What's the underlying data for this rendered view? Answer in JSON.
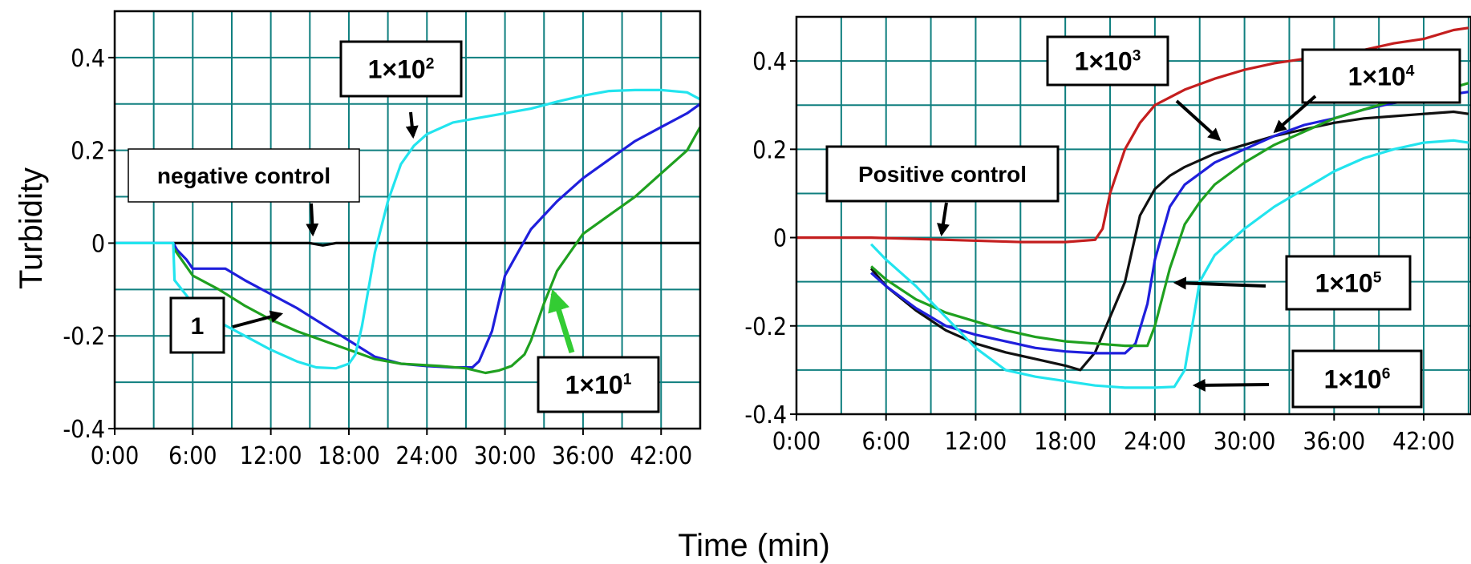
{
  "figure": {
    "ylabel": "Turbidity",
    "xlabel": "Time (min)"
  },
  "chart_data": [
    {
      "type": "line",
      "panel": "left",
      "xlabel": "Time (min)",
      "ylabel": "Turbidity",
      "x_ticks": [
        "0:00",
        "6:00",
        "12:00",
        "18:00",
        "24:00",
        "30:00",
        "36:00",
        "42:00"
      ],
      "y_ticks": [
        "0.4",
        "0.2",
        "0",
        "-0.2",
        "-0.4"
      ],
      "xlim": [
        0,
        45
      ],
      "ylim": [
        -0.4,
        0.5
      ],
      "grid": true,
      "series": [
        {
          "name": "negative control",
          "color": "#000000",
          "points": [
            [
              4.5,
              0
            ],
            [
              10,
              0
            ],
            [
              15,
              0
            ],
            [
              16,
              -0.005
            ],
            [
              17,
              0
            ],
            [
              20,
              0
            ],
            [
              25,
              0
            ],
            [
              30,
              0
            ],
            [
              35,
              0
            ],
            [
              40,
              0
            ],
            [
              45,
              0
            ]
          ]
        },
        {
          "name": "1",
          "color": "#1f1fdc",
          "points": [
            [
              0,
              0
            ],
            [
              4.5,
              0
            ],
            [
              4.8,
              -0.015
            ],
            [
              5.5,
              -0.035
            ],
            [
              6,
              -0.055
            ],
            [
              8.5,
              -0.055
            ],
            [
              10,
              -0.08
            ],
            [
              12,
              -0.11
            ],
            [
              14,
              -0.14
            ],
            [
              16,
              -0.175
            ],
            [
              18,
              -0.21
            ],
            [
              20,
              -0.245
            ],
            [
              22,
              -0.26
            ],
            [
              24,
              -0.265
            ],
            [
              26,
              -0.268
            ],
            [
              27.5,
              -0.268
            ],
            [
              28,
              -0.255
            ],
            [
              29,
              -0.19
            ],
            [
              30,
              -0.07
            ],
            [
              31,
              -0.02
            ],
            [
              32,
              0.03
            ],
            [
              34,
              0.09
            ],
            [
              36,
              0.14
            ],
            [
              38,
              0.18
            ],
            [
              40,
              0.22
            ],
            [
              42,
              0.25
            ],
            [
              44,
              0.28
            ],
            [
              45,
              0.3
            ]
          ]
        },
        {
          "name": "1×10¹",
          "color": "#1fa01f",
          "points": [
            [
              4.5,
              -0.01
            ],
            [
              5,
              -0.03
            ],
            [
              6,
              -0.07
            ],
            [
              8,
              -0.1
            ],
            [
              10,
              -0.135
            ],
            [
              12,
              -0.165
            ],
            [
              14,
              -0.19
            ],
            [
              16,
              -0.21
            ],
            [
              18,
              -0.23
            ],
            [
              20,
              -0.25
            ],
            [
              22,
              -0.26
            ],
            [
              25,
              -0.265
            ],
            [
              27,
              -0.27
            ],
            [
              28.5,
              -0.28
            ],
            [
              29.5,
              -0.275
            ],
            [
              30.5,
              -0.265
            ],
            [
              31.5,
              -0.24
            ],
            [
              32,
              -0.21
            ],
            [
              33,
              -0.13
            ],
            [
              34,
              -0.06
            ],
            [
              35,
              -0.02
            ],
            [
              36,
              0.02
            ],
            [
              38,
              0.06
            ],
            [
              40,
              0.1
            ],
            [
              42,
              0.15
            ],
            [
              44,
              0.2
            ],
            [
              45,
              0.25
            ]
          ]
        },
        {
          "name": "1×10²",
          "color": "#22e4ee",
          "points": [
            [
              0,
              0
            ],
            [
              4.5,
              0
            ],
            [
              4.6,
              -0.08
            ],
            [
              6,
              -0.13
            ],
            [
              8,
              -0.17
            ],
            [
              10,
              -0.2
            ],
            [
              12,
              -0.23
            ],
            [
              14,
              -0.255
            ],
            [
              15.5,
              -0.268
            ],
            [
              17,
              -0.27
            ],
            [
              18,
              -0.26
            ],
            [
              18.5,
              -0.24
            ],
            [
              19,
              -0.18
            ],
            [
              19.5,
              -0.1
            ],
            [
              20,
              -0.02
            ],
            [
              21,
              0.09
            ],
            [
              22,
              0.17
            ],
            [
              23,
              0.21
            ],
            [
              24,
              0.235
            ],
            [
              26,
              0.26
            ],
            [
              28,
              0.27
            ],
            [
              30,
              0.28
            ],
            [
              32,
              0.29
            ],
            [
              34,
              0.305
            ],
            [
              36,
              0.318
            ],
            [
              38,
              0.328
            ],
            [
              40,
              0.33
            ],
            [
              42,
              0.33
            ],
            [
              44,
              0.325
            ],
            [
              45,
              0.31
            ]
          ]
        }
      ],
      "annotations": [
        "negative control",
        "1",
        "1×10¹",
        "1×10²"
      ]
    },
    {
      "type": "line",
      "panel": "right",
      "xlabel": "Time (min)",
      "ylabel": "Turbidity",
      "x_ticks": [
        "0:00",
        "6:00",
        "12:00",
        "18:00",
        "24:00",
        "30:00",
        "36:00",
        "42:00"
      ],
      "y_ticks": [
        "0.4",
        "0.2",
        "0",
        "-0.2",
        "-0.4"
      ],
      "xlim": [
        0,
        45
      ],
      "ylim": [
        -0.4,
        0.5
      ],
      "grid": true,
      "series": [
        {
          "name": "Positive control",
          "color": "#c41e1e",
          "points": [
            [
              0,
              0
            ],
            [
              5,
              0
            ],
            [
              10,
              -0.005
            ],
            [
              15,
              -0.01
            ],
            [
              18,
              -0.01
            ],
            [
              20,
              -0.005
            ],
            [
              20.5,
              0.02
            ],
            [
              21,
              0.1
            ],
            [
              22,
              0.2
            ],
            [
              23,
              0.26
            ],
            [
              24,
              0.3
            ],
            [
              26,
              0.335
            ],
            [
              28,
              0.36
            ],
            [
              30,
              0.38
            ],
            [
              32,
              0.395
            ],
            [
              34,
              0.405
            ],
            [
              36,
              0.415
            ],
            [
              38,
              0.425
            ],
            [
              40,
              0.44
            ],
            [
              42,
              0.45
            ],
            [
              44,
              0.47
            ],
            [
              45,
              0.475
            ]
          ]
        },
        {
          "name": "1×10⁴",
          "color": "#111111",
          "points": [
            [
              5,
              -0.07
            ],
            [
              6,
              -0.11
            ],
            [
              8,
              -0.165
            ],
            [
              10,
              -0.21
            ],
            [
              12,
              -0.24
            ],
            [
              14,
              -0.26
            ],
            [
              16,
              -0.275
            ],
            [
              18,
              -0.29
            ],
            [
              19,
              -0.3
            ],
            [
              20,
              -0.26
            ],
            [
              21,
              -0.18
            ],
            [
              22,
              -0.1
            ],
            [
              23,
              0.05
            ],
            [
              24,
              0.11
            ],
            [
              25,
              0.14
            ],
            [
              26,
              0.16
            ],
            [
              28,
              0.19
            ],
            [
              30,
              0.21
            ],
            [
              32,
              0.23
            ],
            [
              34,
              0.245
            ],
            [
              36,
              0.26
            ],
            [
              38,
              0.27
            ],
            [
              40,
              0.275
            ],
            [
              42,
              0.28
            ],
            [
              44,
              0.285
            ],
            [
              45,
              0.28
            ]
          ]
        },
        {
          "name": "1×10⁵",
          "color": "#1f1fdc",
          "points": [
            [
              5,
              -0.08
            ],
            [
              6,
              -0.11
            ],
            [
              8,
              -0.16
            ],
            [
              10,
              -0.2
            ],
            [
              12,
              -0.22
            ],
            [
              14,
              -0.235
            ],
            [
              16,
              -0.25
            ],
            [
              18,
              -0.258
            ],
            [
              20,
              -0.262
            ],
            [
              22,
              -0.262
            ],
            [
              22.7,
              -0.24
            ],
            [
              23.5,
              -0.15
            ],
            [
              24,
              -0.05
            ],
            [
              25,
              0.07
            ],
            [
              26,
              0.12
            ],
            [
              28,
              0.17
            ],
            [
              30,
              0.2
            ],
            [
              32,
              0.23
            ],
            [
              34,
              0.255
            ],
            [
              36,
              0.27
            ],
            [
              38,
              0.29
            ],
            [
              40,
              0.305
            ],
            [
              42,
              0.315
            ],
            [
              44,
              0.325
            ],
            [
              45,
              0.33
            ]
          ]
        },
        {
          "name": "1×10⁶",
          "color": "#1fa01f",
          "points": [
            [
              5,
              -0.065
            ],
            [
              6,
              -0.095
            ],
            [
              8,
              -0.14
            ],
            [
              10,
              -0.17
            ],
            [
              12,
              -0.19
            ],
            [
              14,
              -0.21
            ],
            [
              16,
              -0.225
            ],
            [
              18,
              -0.235
            ],
            [
              20,
              -0.24
            ],
            [
              22,
              -0.245
            ],
            [
              23.5,
              -0.245
            ],
            [
              24,
              -0.2
            ],
            [
              25,
              -0.07
            ],
            [
              26,
              0.03
            ],
            [
              27,
              0.08
            ],
            [
              28,
              0.12
            ],
            [
              30,
              0.17
            ],
            [
              32,
              0.21
            ],
            [
              34,
              0.24
            ],
            [
              36,
              0.27
            ],
            [
              38,
              0.29
            ],
            [
              40,
              0.31
            ],
            [
              42,
              0.325
            ],
            [
              44,
              0.34
            ],
            [
              45,
              0.35
            ]
          ]
        },
        {
          "name": "",
          "color": "#22e4ee",
          "points": [
            [
              5,
              -0.015
            ],
            [
              6,
              -0.05
            ],
            [
              8,
              -0.11
            ],
            [
              10,
              -0.18
            ],
            [
              12,
              -0.25
            ],
            [
              14,
              -0.3
            ],
            [
              16,
              -0.315
            ],
            [
              18,
              -0.325
            ],
            [
              20,
              -0.335
            ],
            [
              22,
              -0.34
            ],
            [
              24,
              -0.34
            ],
            [
              25.3,
              -0.338
            ],
            [
              26,
              -0.3
            ],
            [
              26.5,
              -0.2
            ],
            [
              27,
              -0.1
            ],
            [
              28,
              -0.04
            ],
            [
              30,
              0.02
            ],
            [
              32,
              0.07
            ],
            [
              34,
              0.11
            ],
            [
              36,
              0.15
            ],
            [
              38,
              0.18
            ],
            [
              40,
              0.2
            ],
            [
              42,
              0.215
            ],
            [
              44,
              0.22
            ],
            [
              45,
              0.215
            ]
          ]
        }
      ],
      "annotations": [
        "Positive control",
        "1×10³",
        "1×10⁴",
        "1×10⁵",
        "1×10⁶"
      ]
    }
  ],
  "annotation_boxes": {
    "left": [
      {
        "label": "negative control",
        "border": "thin"
      },
      {
        "label": "1",
        "border": "thick"
      },
      {
        "label": "1×10",
        "sup": "2",
        "border": "thick"
      },
      {
        "label": "1×10",
        "sup": "1",
        "border": "thick"
      }
    ],
    "right": [
      {
        "label": "Positive control",
        "border": "thick"
      },
      {
        "label": "1×10",
        "sup": "3",
        "border": "thick"
      },
      {
        "label": "1×10",
        "sup": "4",
        "border": "thick"
      },
      {
        "label": "1×10",
        "sup": "5",
        "border": "thick"
      },
      {
        "label": "1×10",
        "sup": "6",
        "border": "thick"
      }
    ]
  }
}
